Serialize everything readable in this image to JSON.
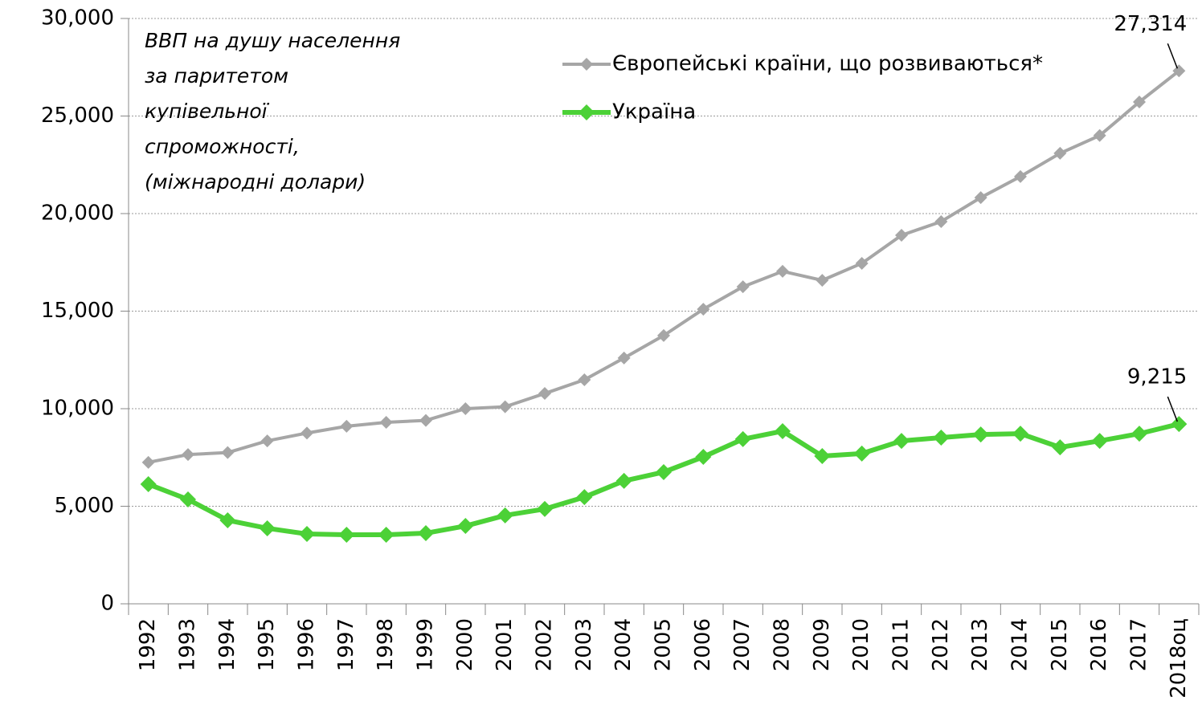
{
  "chart_data": {
    "type": "line",
    "annotation": [
      "ВВП на душу населення",
      "за паритетом",
      "купівельної",
      "спроможності,",
      "(міжнародні долари)"
    ],
    "categories": [
      "1992",
      "1993",
      "1994",
      "1995",
      "1996",
      "1997",
      "1998",
      "1999",
      "2000",
      "2001",
      "2002",
      "2003",
      "2004",
      "2005",
      "2006",
      "2007",
      "2008",
      "2009",
      "2010",
      "2011",
      "2012",
      "2013",
      "2014",
      "2015",
      "2016",
      "2017",
      "2018оц"
    ],
    "series": [
      {
        "name": "Європейські країни, що розвиваються*",
        "color": "#a6a6a6",
        "values": [
          7250,
          7650,
          7750,
          8350,
          8750,
          9100,
          9300,
          9400,
          10000,
          10100,
          10780,
          11480,
          12600,
          13750,
          15100,
          16250,
          17040,
          16580,
          17450,
          18890,
          19590,
          20820,
          21900,
          23090,
          24000,
          25720,
          27314
        ],
        "value_labels": [
          null,
          null,
          null,
          null,
          null,
          null,
          null,
          null,
          null,
          null,
          null,
          null,
          null,
          null,
          null,
          null,
          null,
          null,
          null,
          null,
          null,
          null,
          null,
          null,
          null,
          null,
          "27,314"
        ]
      },
      {
        "name": "Україна",
        "color": "#4cd137",
        "values": [
          6130,
          5350,
          4280,
          3870,
          3580,
          3540,
          3540,
          3620,
          3990,
          4530,
          4860,
          5470,
          6300,
          6750,
          7530,
          8440,
          8850,
          7570,
          7700,
          8350,
          8520,
          8680,
          8720,
          8020,
          8350,
          8720,
          9215
        ],
        "value_labels": [
          null,
          null,
          null,
          null,
          null,
          null,
          null,
          null,
          null,
          null,
          null,
          null,
          null,
          null,
          null,
          null,
          null,
          null,
          null,
          null,
          null,
          null,
          null,
          null,
          null,
          null,
          "9,215"
        ]
      }
    ],
    "ylim": [
      0,
      30000
    ],
    "yticks": [
      0,
      {
        "value": 5000,
        "label": "5,000"
      },
      {
        "value": 10000,
        "label": "10,000"
      },
      {
        "value": 15000,
        "label": "15,000"
      },
      {
        "value": 20000,
        "label": "20,000"
      },
      {
        "value": 25000,
        "label": "25,000"
      },
      {
        "value": 30000,
        "label": "30,000"
      }
    ],
    "grid": true
  }
}
